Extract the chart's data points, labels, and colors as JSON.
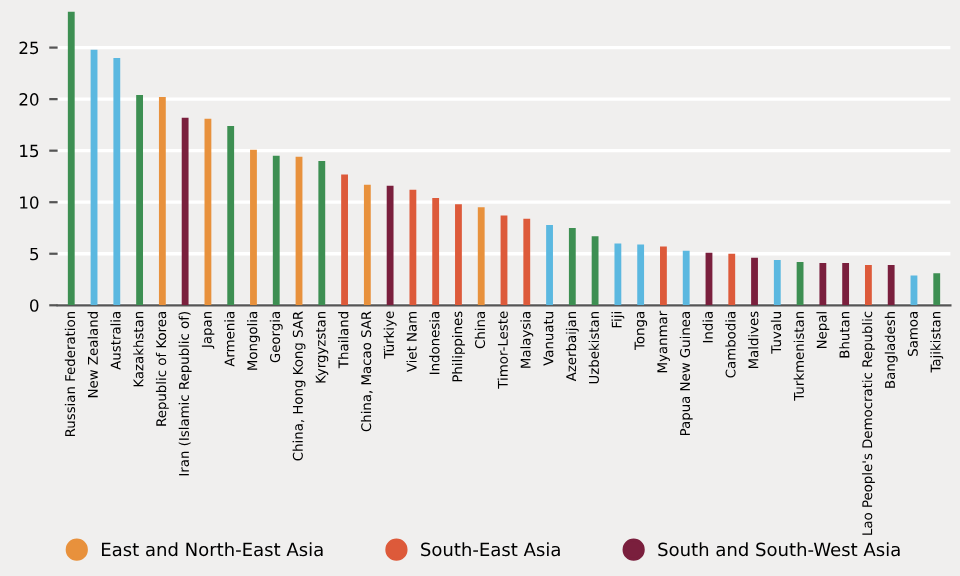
{
  "chart_data": {
    "type": "bar",
    "categories": [
      "Russian Federation",
      "New Zealand",
      "Australia",
      "Kazakhstan",
      "Republic of Korea",
      "Iran (Islamic Republic of)",
      "Japan",
      "Armenia",
      "Mongolia",
      "Georgia",
      "China, Hong Kong SAR",
      "Kyrgyzstan",
      "Thailand",
      "China, Macao SAR",
      "Türkiye",
      "Viet Nam",
      "Indonesia",
      "Philippines",
      "China",
      "Timor-Leste",
      "Malaysia",
      "Vanuatu",
      "Azerbaijan",
      "Uzbekistan",
      "Fiji",
      "Tonga",
      "Myanmar",
      "Papua New Guinea",
      "India",
      "Cambodia",
      "Maldives",
      "Tuvalu",
      "Turkmenistan",
      "Nepal",
      "Bhutan",
      "Lao People's Democratic Republic",
      "Bangladesh",
      "Samoa",
      "Tajikistan"
    ],
    "series": [
      {
        "color": "#3d8f52",
        "values": [
          28.5,
          null,
          null,
          20.4,
          null,
          null,
          null,
          17.4,
          null,
          14.5,
          null,
          14.0,
          null,
          null,
          null,
          null,
          null,
          null,
          null,
          null,
          null,
          null,
          7.5,
          6.7,
          null,
          null,
          null,
          null,
          null,
          null,
          null,
          null,
          4.2,
          null,
          null,
          null,
          null,
          null,
          3.1
        ]
      },
      {
        "color": "#5bb8e0",
        "values": [
          null,
          24.8,
          24.0,
          null,
          null,
          null,
          null,
          null,
          null,
          null,
          null,
          null,
          null,
          null,
          null,
          null,
          null,
          null,
          null,
          null,
          null,
          7.8,
          null,
          null,
          6.0,
          5.9,
          null,
          5.3,
          null,
          null,
          null,
          4.4,
          null,
          null,
          null,
          null,
          null,
          2.9,
          null
        ]
      },
      {
        "name": "East and North-East Asia",
        "color": "#e8913c",
        "values": [
          null,
          null,
          null,
          null,
          20.2,
          null,
          18.1,
          null,
          15.1,
          null,
          14.4,
          null,
          null,
          11.7,
          null,
          null,
          null,
          null,
          9.5,
          null,
          null,
          null,
          null,
          null,
          null,
          null,
          null,
          null,
          null,
          null,
          null,
          null,
          null,
          null,
          null,
          null,
          null,
          null,
          null
        ]
      },
      {
        "name": "South-East Asia",
        "color": "#dd5a3a",
        "values": [
          null,
          null,
          null,
          null,
          null,
          null,
          null,
          null,
          null,
          null,
          null,
          null,
          12.7,
          null,
          null,
          11.2,
          10.4,
          9.8,
          null,
          8.7,
          8.4,
          null,
          null,
          null,
          null,
          null,
          5.7,
          null,
          null,
          5.0,
          null,
          null,
          null,
          null,
          null,
          3.9,
          null,
          null,
          null
        ]
      },
      {
        "name": "South and South-West Asia",
        "color": "#7a1f3d",
        "values": [
          null,
          null,
          null,
          null,
          null,
          18.2,
          null,
          null,
          null,
          null,
          null,
          null,
          null,
          null,
          11.6,
          null,
          null,
          null,
          null,
          null,
          null,
          null,
          null,
          null,
          null,
          null,
          null,
          null,
          5.1,
          null,
          4.6,
          null,
          null,
          4.1,
          4.1,
          null,
          3.9,
          null,
          null
        ]
      }
    ],
    "ylim": [
      0,
      28.5
    ],
    "yticks": [
      0,
      5,
      10,
      15,
      20,
      25
    ],
    "grid": "y",
    "legend": "bottom"
  }
}
